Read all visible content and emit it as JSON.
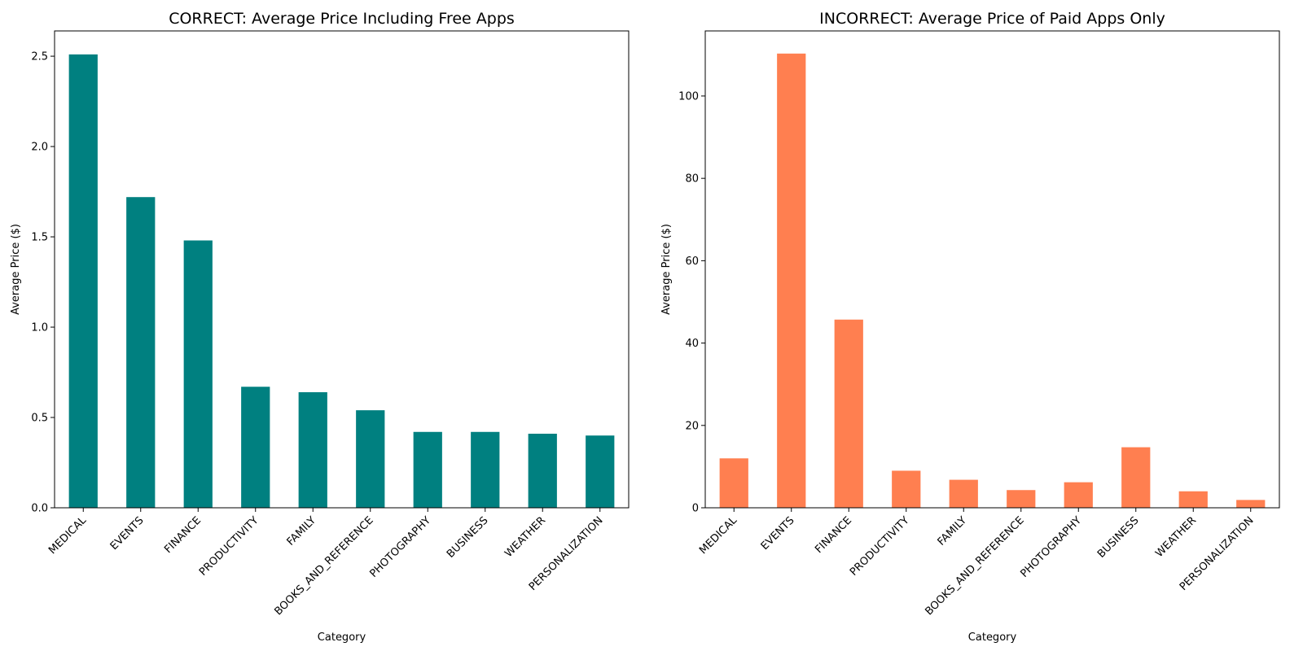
{
  "chart_data": [
    {
      "type": "bar",
      "title": "CORRECT: Average Price Including Free Apps",
      "xlabel": "Category",
      "ylabel": "Average Price ($)",
      "categories": [
        "MEDICAL",
        "EVENTS",
        "FINANCE",
        "PRODUCTIVITY",
        "FAMILY",
        "BOOKS_AND_REFERENCE",
        "PHOTOGRAPHY",
        "BUSINESS",
        "WEATHER",
        "PERSONALIZATION"
      ],
      "values": [
        2.51,
        1.72,
        1.48,
        0.67,
        0.64,
        0.54,
        0.42,
        0.42,
        0.41,
        0.4
      ],
      "ylim": [
        0,
        2.64
      ],
      "yticks": [
        0.0,
        0.5,
        1.0,
        1.5,
        2.0,
        2.5
      ],
      "ytick_labels": [
        "0.0",
        "0.5",
        "1.0",
        "1.5",
        "2.0",
        "2.5"
      ],
      "color": "#008080",
      "grid": false
    },
    {
      "type": "bar",
      "title": "INCORRECT: Average Price of Paid Apps Only",
      "xlabel": "Category",
      "ylabel": "Average Price ($)",
      "categories": [
        "MEDICAL",
        "EVENTS",
        "FINANCE",
        "PRODUCTIVITY",
        "FAMILY",
        "BOOKS_AND_REFERENCE",
        "PHOTOGRAPHY",
        "BUSINESS",
        "WEATHER",
        "PERSONALIZATION"
      ],
      "values": [
        12.0,
        110.3,
        45.7,
        9.0,
        6.8,
        4.3,
        6.2,
        14.7,
        4.0,
        1.9
      ],
      "ylim": [
        0,
        115.8
      ],
      "yticks": [
        0,
        20,
        40,
        60,
        80,
        100
      ],
      "ytick_labels": [
        "0",
        "20",
        "40",
        "60",
        "80",
        "100"
      ],
      "color": "#ff7f50",
      "grid": false
    }
  ]
}
